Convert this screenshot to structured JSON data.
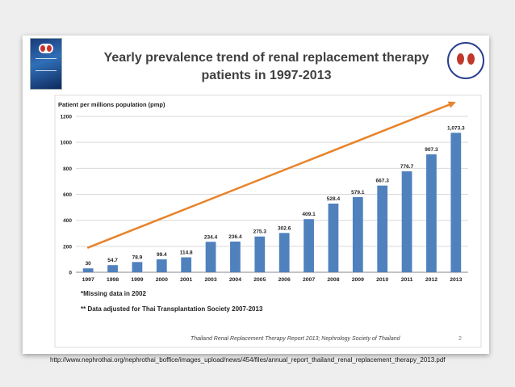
{
  "slide": {
    "title_line1": "Yearly prevalence trend of renal replacement therapy",
    "title_line2": "patients in 1997-2013",
    "page_number": "2",
    "source": "Thailand Renal Replacement Therapy Report 2013; Nephrology Society of Thailand",
    "url": "http://www.nephrothai.org/nephrothai_boffice/images_upload/news/454/files/annual_report_thailand_renal_replacement_therapy_2013.pdf",
    "notes": [
      "*Missing data in 2002",
      "** Data adjusted for Thai Transplantation Society 2007-2013"
    ]
  },
  "colors": {
    "bar": "#4f81bd",
    "trend_arrow": "#e8832a",
    "title": "#404040"
  },
  "chart_data": {
    "type": "bar",
    "ylabel": "Patient per millions population (pmp)",
    "xlabel": "",
    "ylim": [
      0,
      1200
    ],
    "yticks": [
      0,
      200,
      400,
      600,
      800,
      1000,
      1200
    ],
    "ytick_labels": [
      "0",
      "200",
      "400",
      "600",
      "800",
      "1000",
      "1200"
    ],
    "grid": true,
    "categories": [
      "1997",
      "1998",
      "1999",
      "2000",
      "2001",
      "2003",
      "2004",
      "2005",
      "2006",
      "2007",
      "2008",
      "2009",
      "2010",
      "2011",
      "2012",
      "2013"
    ],
    "values": [
      30,
      54.7,
      78.9,
      99.4,
      114.8,
      234.4,
      236.4,
      275.3,
      302.6,
      409.1,
      528.4,
      579.1,
      667.3,
      776.7,
      907.3,
      1073.3
    ],
    "value_labels": [
      "30",
      "54.7",
      "78.9",
      "99.4",
      "114.8",
      "234.4",
      "236.4",
      "275.3",
      "302.6",
      "409.1",
      "528.4",
      "579.1",
      "667.3",
      "776.7",
      "907.3",
      "1,073.3"
    ],
    "trend_arrow": {
      "from": {
        "category": "1997",
        "value": 190
      },
      "to": {
        "category": "2013",
        "value": 1310
      }
    }
  }
}
